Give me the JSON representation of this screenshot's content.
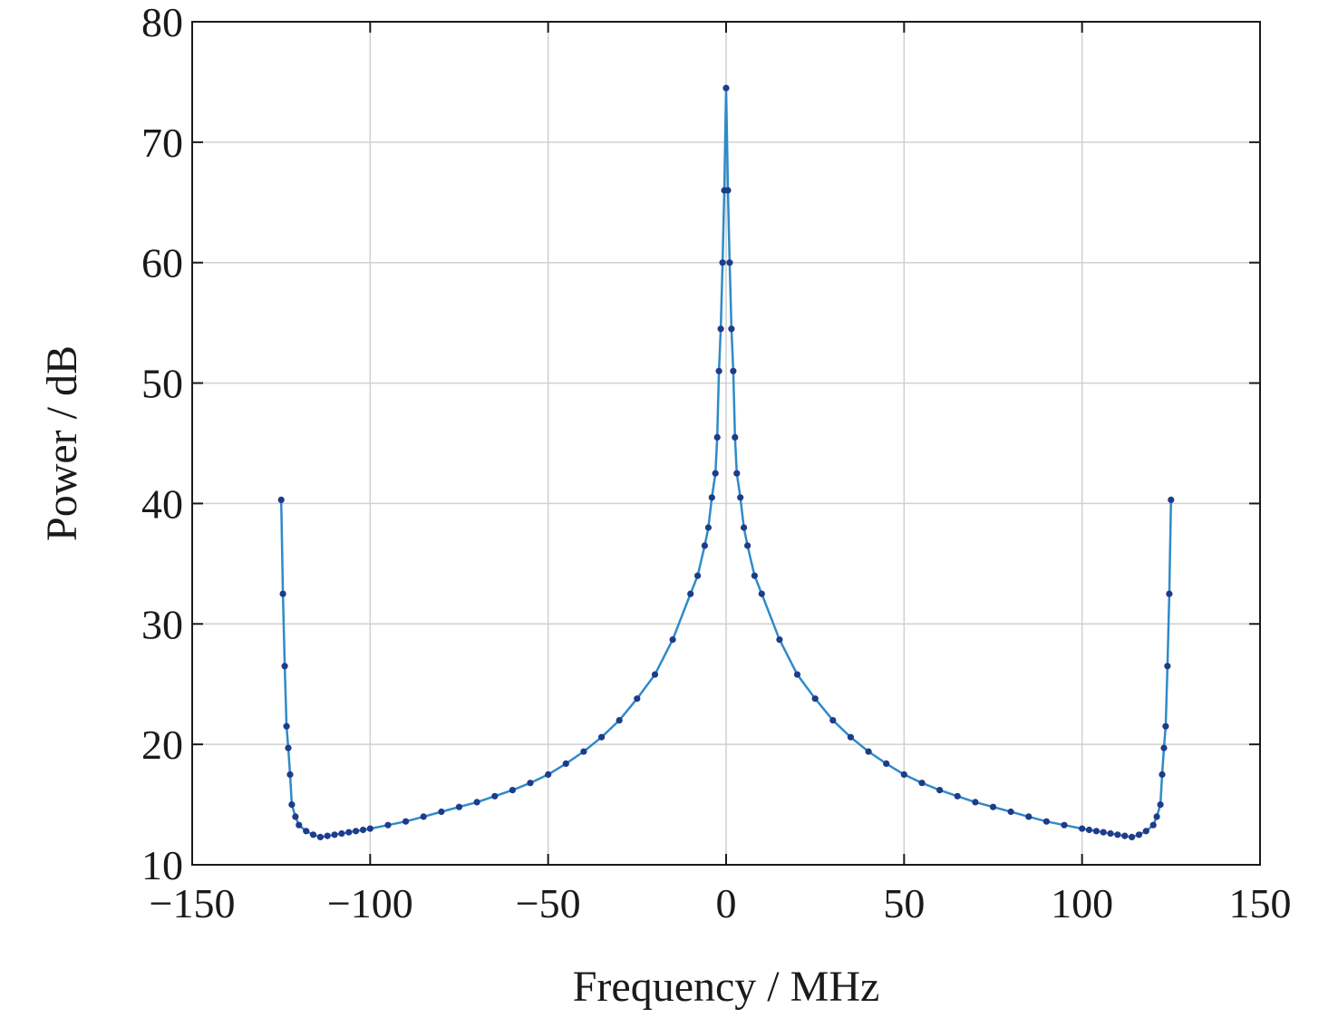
{
  "chart_data": {
    "type": "line",
    "xlabel": "Frequency / MHz",
    "ylabel": "Power / dB",
    "xlim": [
      -150,
      150
    ],
    "ylim": [
      10,
      80
    ],
    "xticks": [
      -150,
      -100,
      -50,
      0,
      50,
      100,
      150
    ],
    "yticks": [
      10,
      20,
      30,
      40,
      50,
      60,
      70,
      80
    ],
    "xtick_labels": [
      "−150",
      "−100",
      "−50",
      "0",
      "50",
      "100",
      "150"
    ],
    "ytick_labels": [
      "10",
      "20",
      "30",
      "40",
      "50",
      "60",
      "70",
      "80"
    ],
    "grid": true,
    "legend": "none",
    "colors": {
      "line": "#2e8bc9",
      "marker": "#1f3b8a"
    },
    "series": [
      {
        "x": [
          -125,
          -124.5,
          -124,
          -123.5,
          -123,
          -122.5,
          -122,
          -121,
          -120,
          -118,
          -116,
          -114,
          -112,
          -110,
          -108,
          -106,
          -104,
          -102,
          -100,
          -95,
          -90,
          -85,
          -80,
          -75,
          -70,
          -65,
          -60,
          -55,
          -50,
          -45,
          -40,
          -35,
          -30,
          -25,
          -20,
          -15,
          -10,
          -8,
          -6,
          -5,
          -4,
          -3,
          -2.5,
          -2,
          -1.5,
          -1,
          -0.5,
          0,
          0.5,
          1,
          1.5,
          2,
          2.5,
          3,
          4,
          5,
          6,
          8,
          10,
          15,
          20,
          25,
          30,
          35,
          40,
          45,
          50,
          55,
          60,
          65,
          70,
          75,
          80,
          85,
          90,
          95,
          100,
          102,
          104,
          106,
          108,
          110,
          112,
          114,
          116,
          118,
          120,
          121,
          122,
          122.5,
          123,
          123.5,
          124,
          124.5,
          125
        ],
        "y": [
          40.3,
          32.5,
          26.5,
          21.5,
          19.7,
          17.5,
          15.0,
          14.0,
          13.3,
          12.8,
          12.5,
          12.3,
          12.4,
          12.5,
          12.6,
          12.7,
          12.8,
          12.9,
          13.0,
          13.3,
          13.6,
          14.0,
          14.4,
          14.8,
          15.2,
          15.7,
          16.2,
          16.8,
          17.5,
          18.4,
          19.4,
          20.6,
          22.0,
          23.8,
          25.8,
          28.7,
          32.5,
          34.0,
          36.5,
          38.0,
          40.5,
          42.5,
          45.5,
          51.0,
          54.5,
          60.0,
          66.0,
          74.5,
          66.0,
          60.0,
          54.5,
          51.0,
          45.5,
          42.5,
          40.5,
          38.0,
          36.5,
          34.0,
          32.5,
          28.7,
          25.8,
          23.8,
          22.0,
          20.6,
          19.4,
          18.4,
          17.5,
          16.8,
          16.2,
          15.7,
          15.2,
          14.8,
          14.4,
          14.0,
          13.6,
          13.3,
          13.0,
          12.9,
          12.8,
          12.7,
          12.6,
          12.5,
          12.4,
          12.3,
          12.5,
          12.8,
          13.3,
          14.0,
          15.0,
          17.5,
          19.7,
          21.5,
          26.5,
          32.5,
          40.3
        ]
      }
    ]
  }
}
